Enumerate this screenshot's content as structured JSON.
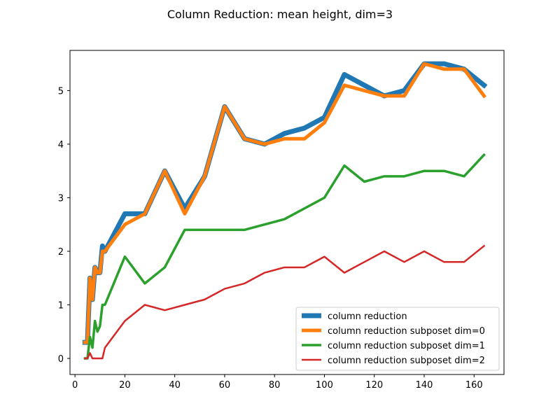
{
  "chart_data": {
    "type": "line",
    "title": "Column Reduction: mean height, dim=3",
    "xlabel": "",
    "ylabel": "",
    "xlim": [
      -2.0,
      172.0
    ],
    "ylim": [
      -0.3,
      5.75
    ],
    "xticks": [
      0,
      20,
      40,
      60,
      80,
      100,
      120,
      140,
      160
    ],
    "yticks": [
      0,
      1,
      2,
      3,
      4,
      5
    ],
    "grid": false,
    "legend_position": "lower-right",
    "series": [
      {
        "name": "column reduction",
        "color": "#1f77b4",
        "x": [
          4,
          5,
          6,
          7,
          8,
          9,
          10,
          11,
          12,
          20,
          28,
          36,
          44,
          52,
          60,
          68,
          76,
          84,
          92,
          100,
          108,
          116,
          124,
          132,
          140,
          148,
          156,
          164
        ],
        "y": [
          0.3,
          0.3,
          1.5,
          1.1,
          1.7,
          1.6,
          1.6,
          2.1,
          2.0,
          2.7,
          2.7,
          3.5,
          2.8,
          3.4,
          4.7,
          4.1,
          4.0,
          4.2,
          4.3,
          4.5,
          5.3,
          5.1,
          4.9,
          5.0,
          5.5,
          5.5,
          5.4,
          5.1
        ]
      },
      {
        "name": "column reduction subposet dim=0",
        "color": "#ff7f0e",
        "x": [
          4,
          5,
          6,
          7,
          8,
          9,
          10,
          11,
          12,
          20,
          28,
          36,
          44,
          52,
          60,
          68,
          76,
          84,
          92,
          100,
          108,
          116,
          124,
          132,
          140,
          148,
          156,
          164
        ],
        "y": [
          0.3,
          0.3,
          1.5,
          1.1,
          1.7,
          1.6,
          1.6,
          2.0,
          2.0,
          2.5,
          2.7,
          3.5,
          2.7,
          3.4,
          4.7,
          4.1,
          4.0,
          4.1,
          4.1,
          4.4,
          5.1,
          5.0,
          4.9,
          4.9,
          5.5,
          5.4,
          5.4,
          4.9
        ]
      },
      {
        "name": "column reduction subposet dim=1",
        "color": "#2ca02c",
        "x": [
          4,
          5,
          6,
          7,
          8,
          9,
          10,
          11,
          12,
          20,
          28,
          36,
          44,
          52,
          60,
          68,
          76,
          84,
          92,
          100,
          108,
          116,
          124,
          132,
          140,
          148,
          156,
          164
        ],
        "y": [
          0.0,
          0.0,
          0.4,
          0.2,
          0.7,
          0.5,
          0.6,
          1.0,
          1.0,
          1.9,
          1.4,
          1.7,
          2.4,
          2.4,
          2.4,
          2.4,
          2.5,
          2.6,
          2.8,
          3.0,
          3.6,
          3.3,
          3.4,
          3.4,
          3.5,
          3.5,
          3.4,
          3.8
        ]
      },
      {
        "name": "column reduction subposet dim=2",
        "color": "#d62728",
        "x": [
          4,
          5,
          6,
          7,
          8,
          9,
          10,
          11,
          12,
          20,
          28,
          36,
          44,
          52,
          60,
          68,
          76,
          84,
          92,
          100,
          108,
          116,
          124,
          132,
          140,
          148,
          156,
          164
        ],
        "y": [
          0.0,
          0.0,
          0.1,
          0.0,
          0.0,
          0.0,
          0.0,
          0.0,
          0.2,
          0.7,
          1.0,
          0.9,
          1.0,
          1.1,
          1.3,
          1.4,
          1.6,
          1.7,
          1.7,
          1.9,
          1.6,
          1.8,
          2.0,
          1.8,
          2.0,
          1.8,
          1.8,
          2.1
        ]
      }
    ]
  }
}
